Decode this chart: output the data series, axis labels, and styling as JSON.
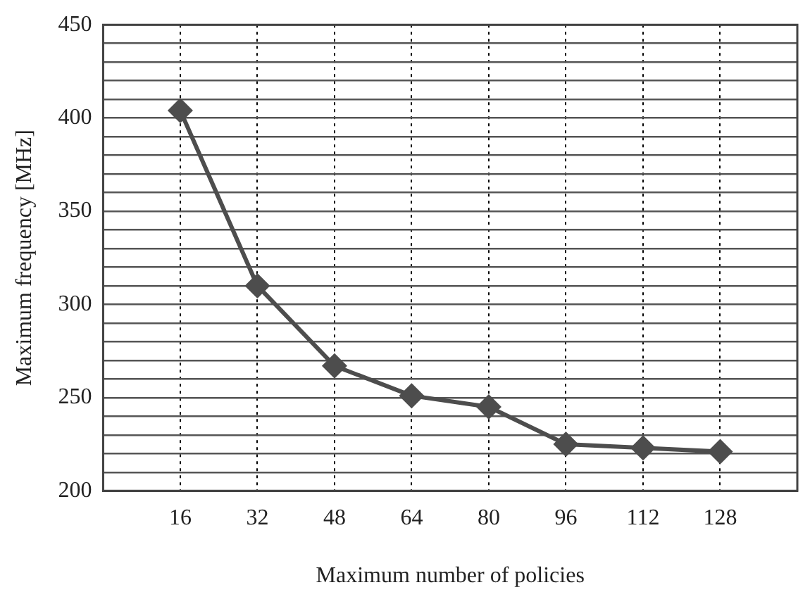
{
  "chart_data": {
    "type": "line",
    "xlabel": "Maximum number of policies",
    "ylabel": "Maximum frequency [MHz]",
    "x": [
      16,
      32,
      48,
      64,
      80,
      96,
      112,
      128
    ],
    "series": [
      {
        "color": "#4d4d4d",
        "values": [
          404,
          310,
          267,
          251,
          245,
          225,
          223,
          221
        ]
      }
    ],
    "xlim": [
      0,
      144
    ],
    "xticks": [
      16,
      32,
      48,
      64,
      80,
      96,
      112,
      128
    ],
    "ylim": [
      200,
      450
    ],
    "yticks": [
      200,
      {
        "value": 210,
        "label": null
      },
      {
        "value": 220,
        "label": null
      },
      {
        "value": 230,
        "label": null
      },
      {
        "value": 240,
        "label": null
      },
      250,
      {
        "value": 260,
        "label": null
      },
      {
        "value": 270,
        "label": null
      },
      {
        "value": 280,
        "label": null
      },
      {
        "value": 290,
        "label": null
      },
      300,
      {
        "value": 310,
        "label": null
      },
      {
        "value": 320,
        "label": null
      },
      {
        "value": 330,
        "label": null
      },
      {
        "value": 340,
        "label": null
      },
      350,
      {
        "value": 360,
        "label": null
      },
      {
        "value": 370,
        "label": null
      },
      {
        "value": 380,
        "label": null
      },
      {
        "value": 390,
        "label": null
      },
      400,
      {
        "value": 410,
        "label": null
      },
      {
        "value": 420,
        "label": null
      },
      {
        "value": 430,
        "label": null
      },
      {
        "value": 440,
        "label": null
      },
      450
    ],
    "grid": true,
    "legend": false,
    "marker": "diamond",
    "line_style": "solid"
  }
}
